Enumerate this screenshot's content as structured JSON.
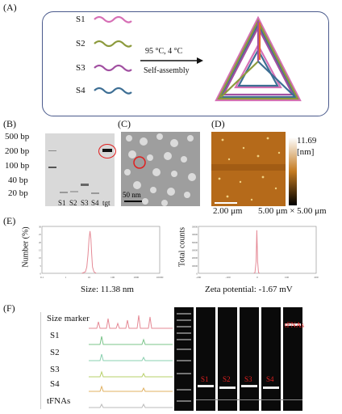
{
  "panels": {
    "A": {
      "label": "(A)",
      "strands": [
        "S1",
        "S2",
        "S3",
        "S4"
      ],
      "condition": "95 °C,   4 °C",
      "process": "Self-assembly"
    },
    "B": {
      "label": "(B)",
      "ladder": [
        "500 bp",
        "200 bp",
        "100 bp",
        "40 bp",
        "20 bp"
      ],
      "lanes": [
        "S1",
        "S2",
        "S3",
        "S4",
        "tgt"
      ]
    },
    "C": {
      "label": "(C)",
      "scale": "50 nm"
    },
    "D": {
      "label": "(D)",
      "zmax": "11.69",
      "zunit": "[nm]",
      "scale": "2.00 μm",
      "area": "5.00 μm × 5.00 μm"
    },
    "E": {
      "label": "(E)",
      "left": {
        "ylabel": "Number (%)",
        "caption": "Size: 11.38 nm",
        "yticks": [
          "30",
          "25",
          "20",
          "15",
          "10",
          "5",
          "0"
        ],
        "xticks": [
          "0.1",
          "1",
          "10",
          "100",
          "1000",
          "10000"
        ]
      },
      "right": {
        "ylabel": "Total counts",
        "caption": "Zeta potential: -1.67 mV",
        "yticks": [
          "120000",
          "100000",
          "80000",
          "60000",
          "40000",
          "20000",
          "0"
        ],
        "xticks": [
          "-200",
          "-100",
          "0",
          "100",
          "200"
        ]
      }
    },
    "F": {
      "label": "(F)",
      "rows": [
        "Size marker",
        "S1",
        "S2",
        "S3",
        "S4",
        "tFNAs"
      ],
      "lane_labels": [
        "S1",
        "S2",
        "S3",
        "S4",
        "tFNAs"
      ]
    }
  },
  "colors": {
    "s1": "#d66fb5",
    "s2": "#8c9a3c",
    "s3": "#a14fa1",
    "s4": "#3d6e94",
    "curve": "#e58a96",
    "lane_red": "#e02020"
  },
  "chart_data": [
    {
      "type": "line",
      "xlabel": "",
      "ylabel": "Number (%)",
      "title": "Size: 11.38 nm",
      "x": [
        5,
        7,
        8,
        9,
        10,
        11,
        12,
        13,
        14,
        16,
        20
      ],
      "y": [
        0,
        1,
        4,
        12,
        22,
        27,
        22,
        12,
        4,
        1,
        0
      ],
      "log_x": true,
      "ylim": [
        0,
        30
      ]
    },
    {
      "type": "line",
      "xlabel": "",
      "ylabel": "Total counts",
      "title": "Zeta potential: -1.67 mV",
      "x": [
        -12,
        -8,
        -4,
        -1.67,
        1,
        4,
        8
      ],
      "y": [
        0,
        2000,
        30000,
        110000,
        30000,
        2000,
        0
      ],
      "xlim": [
        -200,
        200
      ],
      "ylim": [
        0,
        120000
      ]
    }
  ]
}
